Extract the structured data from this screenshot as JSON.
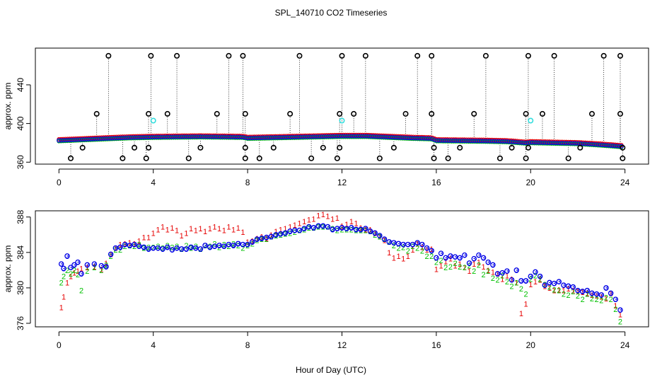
{
  "chart_data": [
    {
      "type": "scatter",
      "title": "SPL_140710  CO2 Timeseries",
      "xlabel": "",
      "ylabel": "approx. ppm",
      "xlim": [
        -1,
        25
      ],
      "ylim": [
        358,
        478
      ],
      "x_ticks": [
        "0",
        "4",
        "8",
        "12",
        "16",
        "20",
        "24"
      ],
      "y_ticks": [
        "360",
        "400",
        "440"
      ],
      "grid": false,
      "baseline": [
        [
          0.0,
          382.5
        ],
        [
          1.0,
          383.5
        ],
        [
          2.0,
          384.5
        ],
        [
          3.0,
          385.5
        ],
        [
          4.0,
          386.0
        ],
        [
          6.0,
          386.5
        ],
        [
          7.8,
          386.0
        ],
        [
          8.0,
          385.0
        ],
        [
          10.0,
          386.0
        ],
        [
          12.0,
          387.0
        ],
        [
          13.0,
          387.0
        ],
        [
          14.0,
          386.0
        ],
        [
          15.0,
          385.0
        ],
        [
          15.8,
          384.5
        ],
        [
          16.0,
          382.5
        ],
        [
          18.0,
          382.0
        ],
        [
          19.0,
          381.5
        ],
        [
          19.8,
          380.0
        ],
        [
          20.0,
          380.5
        ],
        [
          22.0,
          379.5
        ],
        [
          23.0,
          378.0
        ],
        [
          23.8,
          376.5
        ]
      ],
      "spikes": [
        {
          "x": 2.1,
          "y": 470
        },
        {
          "x": 3.9,
          "y": 470
        },
        {
          "x": 5.0,
          "y": 470
        },
        {
          "x": 7.2,
          "y": 470
        },
        {
          "x": 7.8,
          "y": 470
        },
        {
          "x": 10.2,
          "y": 470
        },
        {
          "x": 12.0,
          "y": 470
        },
        {
          "x": 13.0,
          "y": 470
        },
        {
          "x": 15.2,
          "y": 470
        },
        {
          "x": 15.8,
          "y": 470
        },
        {
          "x": 18.1,
          "y": 470
        },
        {
          "x": 19.9,
          "y": 470
        },
        {
          "x": 21.0,
          "y": 470
        },
        {
          "x": 23.1,
          "y": 470
        },
        {
          "x": 23.8,
          "y": 470
        },
        {
          "x": 1.6,
          "y": 410
        },
        {
          "x": 3.8,
          "y": 410
        },
        {
          "x": 4.6,
          "y": 410
        },
        {
          "x": 6.7,
          "y": 410
        },
        {
          "x": 7.9,
          "y": 410
        },
        {
          "x": 9.8,
          "y": 410
        },
        {
          "x": 11.9,
          "y": 410
        },
        {
          "x": 12.5,
          "y": 410
        },
        {
          "x": 14.7,
          "y": 410
        },
        {
          "x": 15.8,
          "y": 410
        },
        {
          "x": 17.6,
          "y": 410
        },
        {
          "x": 19.8,
          "y": 410
        },
        {
          "x": 20.5,
          "y": 410
        },
        {
          "x": 22.6,
          "y": 410
        },
        {
          "x": 23.8,
          "y": 410
        },
        {
          "x": 1.0,
          "y": 375
        },
        {
          "x": 3.2,
          "y": 375
        },
        {
          "x": 3.8,
          "y": 375
        },
        {
          "x": 6.0,
          "y": 375
        },
        {
          "x": 7.9,
          "y": 375
        },
        {
          "x": 9.1,
          "y": 375
        },
        {
          "x": 11.2,
          "y": 375
        },
        {
          "x": 11.9,
          "y": 375
        },
        {
          "x": 14.2,
          "y": 375
        },
        {
          "x": 15.9,
          "y": 375
        },
        {
          "x": 17.0,
          "y": 375
        },
        {
          "x": 19.2,
          "y": 375
        },
        {
          "x": 19.9,
          "y": 375
        },
        {
          "x": 22.1,
          "y": 375
        },
        {
          "x": 23.9,
          "y": 375
        },
        {
          "x": 0.5,
          "y": 364
        },
        {
          "x": 2.7,
          "y": 364
        },
        {
          "x": 3.7,
          "y": 364
        },
        {
          "x": 5.5,
          "y": 364
        },
        {
          "x": 7.9,
          "y": 364
        },
        {
          "x": 8.5,
          "y": 364
        },
        {
          "x": 10.7,
          "y": 364
        },
        {
          "x": 11.8,
          "y": 364
        },
        {
          "x": 13.6,
          "y": 364
        },
        {
          "x": 15.9,
          "y": 364
        },
        {
          "x": 16.5,
          "y": 364
        },
        {
          "x": 18.7,
          "y": 364
        },
        {
          "x": 19.8,
          "y": 364
        },
        {
          "x": 21.6,
          "y": 364
        },
        {
          "x": 23.9,
          "y": 364
        }
      ],
      "cyan_points": [
        {
          "x": 4.0,
          "y": 403
        },
        {
          "x": 12.0,
          "y": 403
        },
        {
          "x": 20.0,
          "y": 403
        }
      ]
    },
    {
      "type": "scatter",
      "title": "",
      "xlabel": "Hour of Day (UTC)",
      "ylabel": "approx. ppm",
      "xlim": [
        -1,
        25
      ],
      "ylim": [
        375.6,
        388.7
      ],
      "x_ticks": [
        "0",
        "4",
        "8",
        "12",
        "16",
        "20",
        "24"
      ],
      "y_ticks": [
        "376",
        "380",
        "384",
        "388"
      ],
      "grid": false,
      "series": [
        {
          "name": "1",
          "x": [
            0.1,
            0.2,
            0.35,
            0.5,
            0.65,
            0.8,
            0.95,
            1.2,
            1.5,
            1.8,
            2.0,
            2.2,
            2.4,
            2.6,
            2.8,
            3.0,
            3.2,
            3.4,
            3.6,
            3.8,
            4.0,
            4.2,
            4.4,
            4.6,
            4.8,
            5.0,
            5.2,
            5.4,
            5.6,
            5.8,
            6.0,
            6.2,
            6.4,
            6.6,
            6.8,
            7.0,
            7.2,
            7.4,
            7.6,
            7.8,
            8.0,
            8.2,
            8.4,
            8.6,
            8.8,
            9.0,
            9.2,
            9.4,
            9.6,
            9.8,
            10.0,
            10.2,
            10.4,
            10.6,
            10.8,
            11.0,
            11.2,
            11.4,
            11.6,
            11.8,
            12.0,
            12.2,
            12.4,
            12.6,
            12.8,
            13.0,
            13.2,
            13.4,
            13.6,
            13.8,
            14.0,
            14.2,
            14.4,
            14.6,
            14.8,
            15.0,
            15.2,
            15.4,
            15.6,
            15.8,
            16.0,
            16.2,
            16.4,
            16.6,
            16.8,
            17.0,
            17.2,
            17.4,
            17.6,
            17.8,
            18.0,
            18.2,
            18.4,
            18.6,
            18.8,
            19.0,
            19.2,
            19.4,
            19.6,
            19.8,
            20.0,
            20.2,
            20.4,
            20.6,
            20.8,
            21.0,
            21.2,
            21.4,
            21.6,
            21.8,
            22.0,
            22.2,
            22.4,
            22.6,
            22.8,
            23.0,
            23.2,
            23.4,
            23.6,
            23.8
          ],
          "y": [
            377.8,
            379.0,
            380.6,
            381.3,
            381.7,
            381.9,
            382.2,
            382.3,
            382.4,
            382.1,
            382.8,
            383.8,
            384.5,
            384.9,
            385.0,
            385.1,
            385.0,
            385.3,
            385.7,
            385.7,
            386.2,
            386.6,
            386.9,
            386.6,
            386.8,
            386.5,
            385.9,
            386.2,
            386.7,
            386.5,
            386.7,
            386.4,
            386.7,
            386.9,
            386.7,
            386.5,
            386.9,
            386.6,
            386.8,
            386.3,
            385.2,
            385.3,
            385.6,
            385.8,
            385.6,
            386.0,
            386.4,
            386.6,
            386.7,
            386.9,
            387.1,
            387.3,
            387.5,
            387.7,
            387.8,
            388.2,
            388.3,
            388.1,
            387.8,
            387.9,
            387.0,
            387.2,
            387.5,
            387.3,
            386.8,
            386.6,
            386.6,
            386.2,
            385.8,
            385.4,
            384.0,
            383.4,
            383.6,
            383.3,
            383.6,
            384.3,
            385.0,
            384.6,
            384.3,
            384.4,
            382.1,
            382.5,
            383.0,
            383.3,
            382.5,
            382.7,
            382.3,
            381.9,
            382.7,
            382.9,
            382.4,
            382.0,
            381.8,
            381.6,
            381.0,
            381.4,
            381.0,
            380.6,
            377.1,
            378.2,
            380.4,
            380.7,
            380.9,
            380.2,
            380.0,
            379.7,
            379.8,
            379.7,
            379.9,
            379.7,
            379.6,
            379.5,
            379.4,
            379.2,
            379.1,
            379.0,
            378.8,
            379.4,
            378.0,
            377.0
          ]
        },
        {
          "name": "2",
          "x": [
            0.1,
            0.2,
            0.35,
            0.5,
            0.65,
            0.8,
            0.95,
            1.2,
            1.5,
            1.8,
            2.0,
            2.2,
            2.4,
            2.6,
            2.8,
            3.0,
            3.2,
            3.4,
            3.6,
            3.8,
            4.0,
            4.2,
            4.4,
            4.6,
            4.8,
            5.0,
            5.2,
            5.4,
            5.6,
            5.8,
            6.0,
            6.2,
            6.4,
            6.6,
            6.8,
            7.0,
            7.2,
            7.4,
            7.6,
            7.8,
            8.0,
            8.2,
            8.4,
            8.6,
            8.8,
            9.0,
            9.2,
            9.4,
            9.6,
            9.8,
            10.0,
            10.2,
            10.4,
            10.6,
            10.8,
            11.0,
            11.2,
            11.4,
            11.6,
            11.8,
            12.0,
            12.2,
            12.4,
            12.6,
            12.8,
            13.0,
            13.2,
            13.4,
            13.6,
            13.8,
            14.0,
            14.2,
            14.4,
            14.6,
            14.8,
            15.0,
            15.2,
            15.4,
            15.6,
            15.8,
            16.0,
            16.2,
            16.4,
            16.6,
            16.8,
            17.0,
            17.2,
            17.4,
            17.6,
            17.8,
            18.0,
            18.2,
            18.4,
            18.6,
            18.8,
            19.0,
            19.2,
            19.4,
            19.6,
            19.8,
            20.0,
            20.2,
            20.4,
            20.6,
            20.8,
            21.0,
            21.2,
            21.4,
            21.6,
            21.8,
            22.0,
            22.2,
            22.4,
            22.6,
            22.8,
            23.0,
            23.2,
            23.4,
            23.6,
            23.8
          ],
          "y": [
            380.6,
            381.3,
            382.0,
            381.6,
            382.0,
            381.5,
            379.7,
            381.9,
            382.3,
            382.0,
            382.6,
            383.6,
            384.3,
            384.3,
            384.7,
            384.8,
            384.7,
            384.9,
            384.5,
            384.6,
            384.6,
            384.7,
            384.5,
            384.8,
            384.6,
            384.7,
            384.4,
            384.8,
            384.5,
            384.7,
            384.4,
            384.8,
            384.7,
            385.0,
            384.6,
            384.9,
            384.7,
            385.0,
            384.8,
            384.5,
            384.8,
            385.0,
            385.4,
            385.5,
            385.5,
            385.8,
            385.9,
            386.0,
            386.1,
            386.2,
            386.3,
            386.5,
            386.6,
            386.8,
            386.8,
            386.9,
            386.9,
            386.9,
            386.7,
            386.5,
            386.6,
            386.6,
            386.6,
            386.5,
            386.5,
            386.5,
            386.4,
            386.0,
            385.8,
            385.5,
            385.2,
            384.8,
            384.5,
            384.6,
            384.2,
            384.7,
            384.5,
            384.2,
            383.6,
            383.6,
            382.9,
            383.1,
            382.3,
            382.4,
            382.8,
            382.4,
            382.3,
            382.5,
            381.9,
            382.6,
            381.5,
            381.9,
            381.1,
            380.9,
            381.4,
            380.7,
            380.2,
            380.6,
            379.9,
            379.3,
            381.0,
            381.4,
            381.0,
            380.4,
            380.1,
            379.8,
            379.7,
            379.3,
            379.2,
            379.6,
            379.1,
            378.7,
            379.3,
            378.8,
            378.7,
            378.6,
            378.9,
            378.7,
            377.6,
            376.2
          ]
        },
        {
          "name": "3",
          "x": [
            0.1,
            0.2,
            0.35,
            0.5,
            0.65,
            0.8,
            0.95,
            1.2,
            1.5,
            1.8,
            2.0,
            2.2,
            2.4,
            2.6,
            2.8,
            3.0,
            3.2,
            3.4,
            3.6,
            3.8,
            4.0,
            4.2,
            4.4,
            4.6,
            4.8,
            5.0,
            5.2,
            5.4,
            5.6,
            5.8,
            6.0,
            6.2,
            6.4,
            6.6,
            6.8,
            7.0,
            7.2,
            7.4,
            7.6,
            7.8,
            8.0,
            8.2,
            8.4,
            8.6,
            8.8,
            9.0,
            9.2,
            9.4,
            9.6,
            9.8,
            10.0,
            10.2,
            10.4,
            10.6,
            10.8,
            11.0,
            11.2,
            11.4,
            11.6,
            11.8,
            12.0,
            12.2,
            12.4,
            12.6,
            12.8,
            13.0,
            13.2,
            13.4,
            13.6,
            13.8,
            14.0,
            14.2,
            14.4,
            14.6,
            14.8,
            15.0,
            15.2,
            15.4,
            15.6,
            15.8,
            16.0,
            16.2,
            16.4,
            16.6,
            16.8,
            17.0,
            17.2,
            17.4,
            17.6,
            17.8,
            18.0,
            18.2,
            18.4,
            18.6,
            18.8,
            19.0,
            19.2,
            19.4,
            19.6,
            19.8,
            20.0,
            20.2,
            20.4,
            20.6,
            20.8,
            21.0,
            21.2,
            21.4,
            21.6,
            21.8,
            22.0,
            22.2,
            22.4,
            22.6,
            22.8,
            23.0,
            23.2,
            23.4,
            23.6,
            23.8
          ],
          "y": [
            382.7,
            382.2,
            383.6,
            382.3,
            382.6,
            382.9,
            381.6,
            382.6,
            382.7,
            382.5,
            382.4,
            383.8,
            384.5,
            384.6,
            384.9,
            384.8,
            384.9,
            384.7,
            384.6,
            384.4,
            384.5,
            384.5,
            384.4,
            384.6,
            384.3,
            384.5,
            384.4,
            384.4,
            384.6,
            384.5,
            384.4,
            384.8,
            384.6,
            384.7,
            384.8,
            384.7,
            384.9,
            384.8,
            385.0,
            384.9,
            384.9,
            385.2,
            385.5,
            385.6,
            385.7,
            385.8,
            386.0,
            386.1,
            386.2,
            386.4,
            386.5,
            386.5,
            386.7,
            386.9,
            386.8,
            387.0,
            387.0,
            386.9,
            386.6,
            386.7,
            386.8,
            386.7,
            386.8,
            386.6,
            386.6,
            386.7,
            386.4,
            386.2,
            385.9,
            385.5,
            385.2,
            385.1,
            385.0,
            384.9,
            384.9,
            384.9,
            385.1,
            384.9,
            384.5,
            384.2,
            383.4,
            383.9,
            383.4,
            383.6,
            383.5,
            383.4,
            383.7,
            382.8,
            383.3,
            383.7,
            383.4,
            382.9,
            382.6,
            381.6,
            381.7,
            381.9,
            380.9,
            382.0,
            380.8,
            380.8,
            381.3,
            381.8,
            381.3,
            380.3,
            380.6,
            380.5,
            380.7,
            380.3,
            380.2,
            380.1,
            379.7,
            379.6,
            379.7,
            379.4,
            379.3,
            379.2,
            380.0,
            379.4,
            378.7,
            377.5
          ]
        }
      ]
    }
  ],
  "colors": {
    "series_1": "#e60000",
    "series_2": "#00c000",
    "series_3": "#0000e6",
    "spike_marker": "#000000",
    "cyan_marker": "#33dddd"
  }
}
